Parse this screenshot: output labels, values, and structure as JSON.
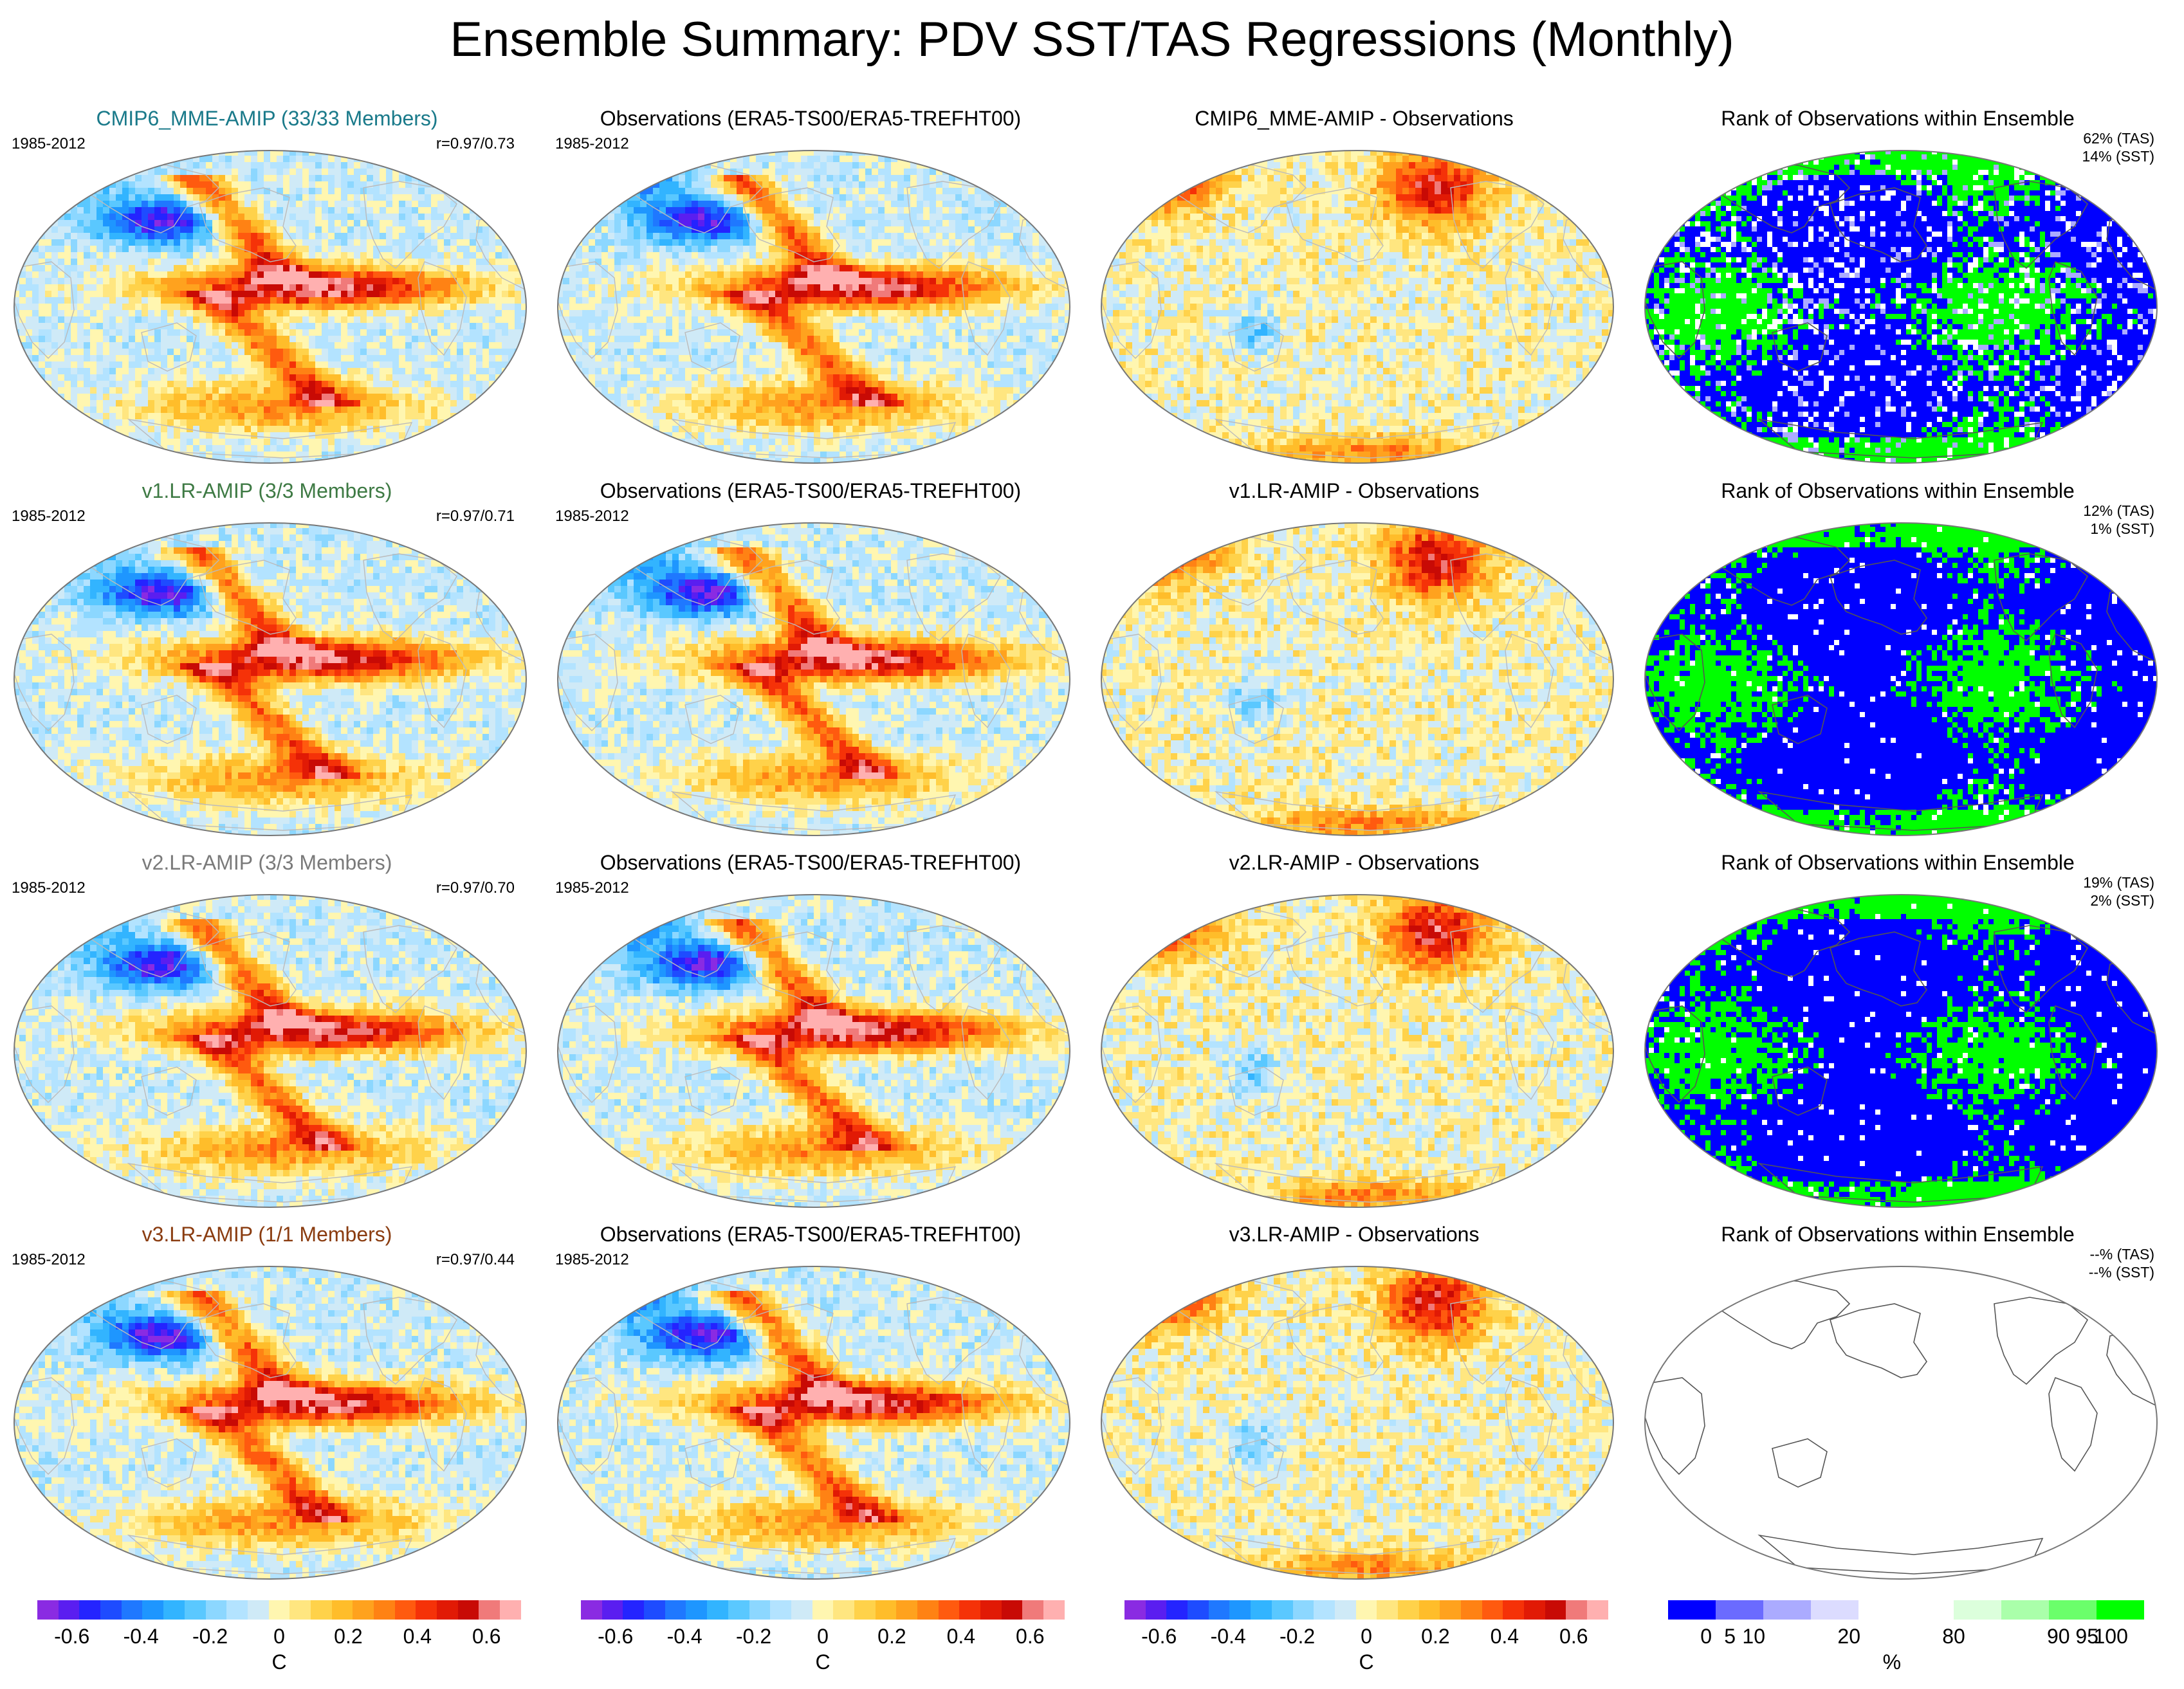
{
  "title": "Ensemble Summary: PDV SST/TAS Regressions (Monthly)",
  "rows": [
    {
      "model": {
        "title": "CMIP6_MME-AMIP (33/33 Members)",
        "color": "#1a7a8a",
        "period": "1985-2012",
        "corr": "r=0.97/0.73"
      },
      "obs": {
        "title": "Observations (ERA5-TS00/ERA5-TREFHT00)",
        "period": "1985-2012"
      },
      "diff": {
        "title": "CMIP6_MME-AMIP - Observations"
      },
      "rank": {
        "title": "Rank of Observations within Ensemble",
        "tas": "62% (TAS)",
        "sst": "14% (SST)",
        "style": "mixed"
      }
    },
    {
      "model": {
        "title": "v1.LR-AMIP (3/3 Members)",
        "color": "#3e7a44",
        "period": "1985-2012",
        "corr": "r=0.97/0.71"
      },
      "obs": {
        "title": "Observations (ERA5-TS00/ERA5-TREFHT00)",
        "period": "1985-2012"
      },
      "diff": {
        "title": "v1.LR-AMIP - Observations"
      },
      "rank": {
        "title": "Rank of Observations within Ensemble",
        "tas": "12% (TAS)",
        "sst": "1% (SST)",
        "style": "binary"
      }
    },
    {
      "model": {
        "title": "v2.LR-AMIP (3/3 Members)",
        "color": "#7a7a7a",
        "period": "1985-2012",
        "corr": "r=0.97/0.70"
      },
      "obs": {
        "title": "Observations (ERA5-TS00/ERA5-TREFHT00)",
        "period": "1985-2012"
      },
      "diff": {
        "title": "v2.LR-AMIP - Observations"
      },
      "rank": {
        "title": "Rank of Observations within Ensemble",
        "tas": "19% (TAS)",
        "sst": "2% (SST)",
        "style": "binary"
      }
    },
    {
      "model": {
        "title": "v3.LR-AMIP (1/1 Members)",
        "color": "#8a3c10",
        "period": "1985-2012",
        "corr": "r=0.97/0.44"
      },
      "obs": {
        "title": "Observations (ERA5-TS00/ERA5-TREFHT00)",
        "period": "1985-2012"
      },
      "diff": {
        "title": "v3.LR-AMIP - Observations"
      },
      "rank": {
        "title": "Rank of Observations within Ensemble",
        "tas": "--% (TAS)",
        "sst": "--% (SST)",
        "style": "empty"
      }
    }
  ],
  "temp_colorbar": {
    "colors": [
      "#8a2be2",
      "#5a1ef0",
      "#2424ff",
      "#1e4cff",
      "#1f78ff",
      "#1e96ff",
      "#32b4ff",
      "#5ac8ff",
      "#8cd7ff",
      "#b3e3ff",
      "#cfeaf7",
      "#fff6b0",
      "#ffe680",
      "#ffd24a",
      "#ffbd2a",
      "#ffa21e",
      "#ff8214",
      "#ff5a0f",
      "#f53208",
      "#e11a05",
      "#c80a05",
      "#f07a7a",
      "#ffb0b0"
    ],
    "ticks": [
      "-0.6",
      "-0.4",
      "-0.2",
      "0",
      "0.2",
      "0.4",
      "0.6"
    ],
    "tick_values": [
      -0.6,
      -0.4,
      -0.2,
      0,
      0.2,
      0.4,
      0.6
    ],
    "range": [
      -0.7,
      0.7
    ],
    "unit": "C"
  },
  "rank_colorbar": {
    "colors": [
      "#0000ff",
      "#6b6bff",
      "#ababff",
      "#dcdcff",
      "#ffffff",
      "#ffffff",
      "#dcffdc",
      "#aaffaa",
      "#6bff6b",
      "#00ff00"
    ],
    "ticks": [
      "0",
      "5",
      "10",
      "20",
      "80",
      "90",
      "95",
      "100"
    ],
    "unit": "%"
  }
}
